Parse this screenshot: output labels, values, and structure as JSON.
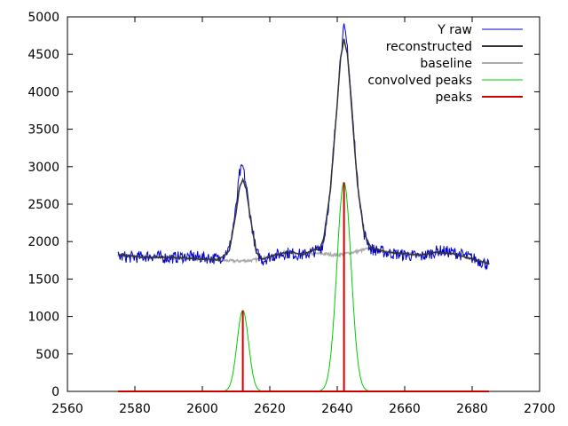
{
  "chart_data": {
    "type": "line",
    "title": "",
    "xlabel": "",
    "ylabel": "",
    "xlim": [
      2560,
      2700
    ],
    "ylim": [
      0,
      5000
    ],
    "xticks": [
      2560,
      2580,
      2600,
      2620,
      2640,
      2660,
      2680,
      2700
    ],
    "yticks": [
      0,
      500,
      1000,
      1500,
      2000,
      2500,
      3000,
      3500,
      4000,
      4500,
      5000
    ],
    "legend_position": "top-right",
    "grid": false,
    "x_range": [
      2575,
      2685
    ],
    "series": [
      {
        "name": "Y raw",
        "color": "#0000cc",
        "description_values": {
          "x": [
            2575,
            2580,
            2585,
            2590,
            2595,
            2600,
            2605,
            2608,
            2610,
            2611,
            2612,
            2613,
            2614,
            2616,
            2618,
            2620,
            2625,
            2630,
            2635,
            2636,
            2638,
            2640,
            2641,
            2642,
            2643,
            2644,
            2646,
            2648,
            2650,
            2655,
            2660,
            2665,
            2670,
            2675,
            2680,
            2685
          ],
          "y": [
            1800,
            1790,
            1810,
            1780,
            1800,
            1790,
            1770,
            1900,
            2450,
            2900,
            3000,
            2750,
            2400,
            1850,
            1750,
            1800,
            1850,
            1820,
            1900,
            2000,
            2700,
            3900,
            4500,
            4850,
            4600,
            4000,
            2800,
            2100,
            1900,
            1850,
            1820,
            1800,
            1880,
            1850,
            1780,
            1690
          ]
        }
      },
      {
        "name": "reconstructed",
        "color": "#333333",
        "x": [
          2575,
          2580,
          2585,
          2590,
          2595,
          2600,
          2605,
          2608,
          2610,
          2611,
          2612,
          2613,
          2614,
          2616,
          2618,
          2620,
          2625,
          2630,
          2635,
          2636,
          2638,
          2640,
          2641,
          2642,
          2643,
          2644,
          2646,
          2648,
          2650,
          2655,
          2660,
          2665,
          2670,
          2675,
          2680,
          2685
        ],
        "y": [
          1820,
          1800,
          1790,
          1790,
          1780,
          1760,
          1760,
          1880,
          2380,
          2720,
          2830,
          2700,
          2380,
          1850,
          1760,
          1800,
          1860,
          1830,
          1920,
          2050,
          2700,
          3850,
          4450,
          4700,
          4500,
          3950,
          2750,
          2100,
          1920,
          1860,
          1840,
          1820,
          1860,
          1830,
          1770,
          1700
        ]
      },
      {
        "name": "baseline",
        "color": "#aaaaaa",
        "x": [
          2575,
          2580,
          2585,
          2590,
          2595,
          2600,
          2605,
          2610,
          2615,
          2620,
          2625,
          2630,
          2635,
          2640,
          2645,
          2650,
          2655,
          2660,
          2665,
          2670,
          2675,
          2680,
          2685
        ],
        "y": [
          1820,
          1800,
          1790,
          1790,
          1780,
          1770,
          1750,
          1740,
          1750,
          1800,
          1860,
          1830,
          1840,
          1820,
          1860,
          1910,
          1860,
          1840,
          1820,
          1860,
          1830,
          1770,
          1700
        ]
      },
      {
        "name": "convolved peaks",
        "color": "#00cc00",
        "peaks": [
          {
            "center": 2612,
            "height": 1080,
            "sigma": 1.7
          },
          {
            "center": 2642,
            "height": 2790,
            "sigma": 2.1
          }
        ]
      },
      {
        "name": "peaks",
        "color": "#cc0000",
        "x": [
          2612,
          2642
        ],
        "y": [
          1080,
          2790
        ]
      }
    ]
  }
}
